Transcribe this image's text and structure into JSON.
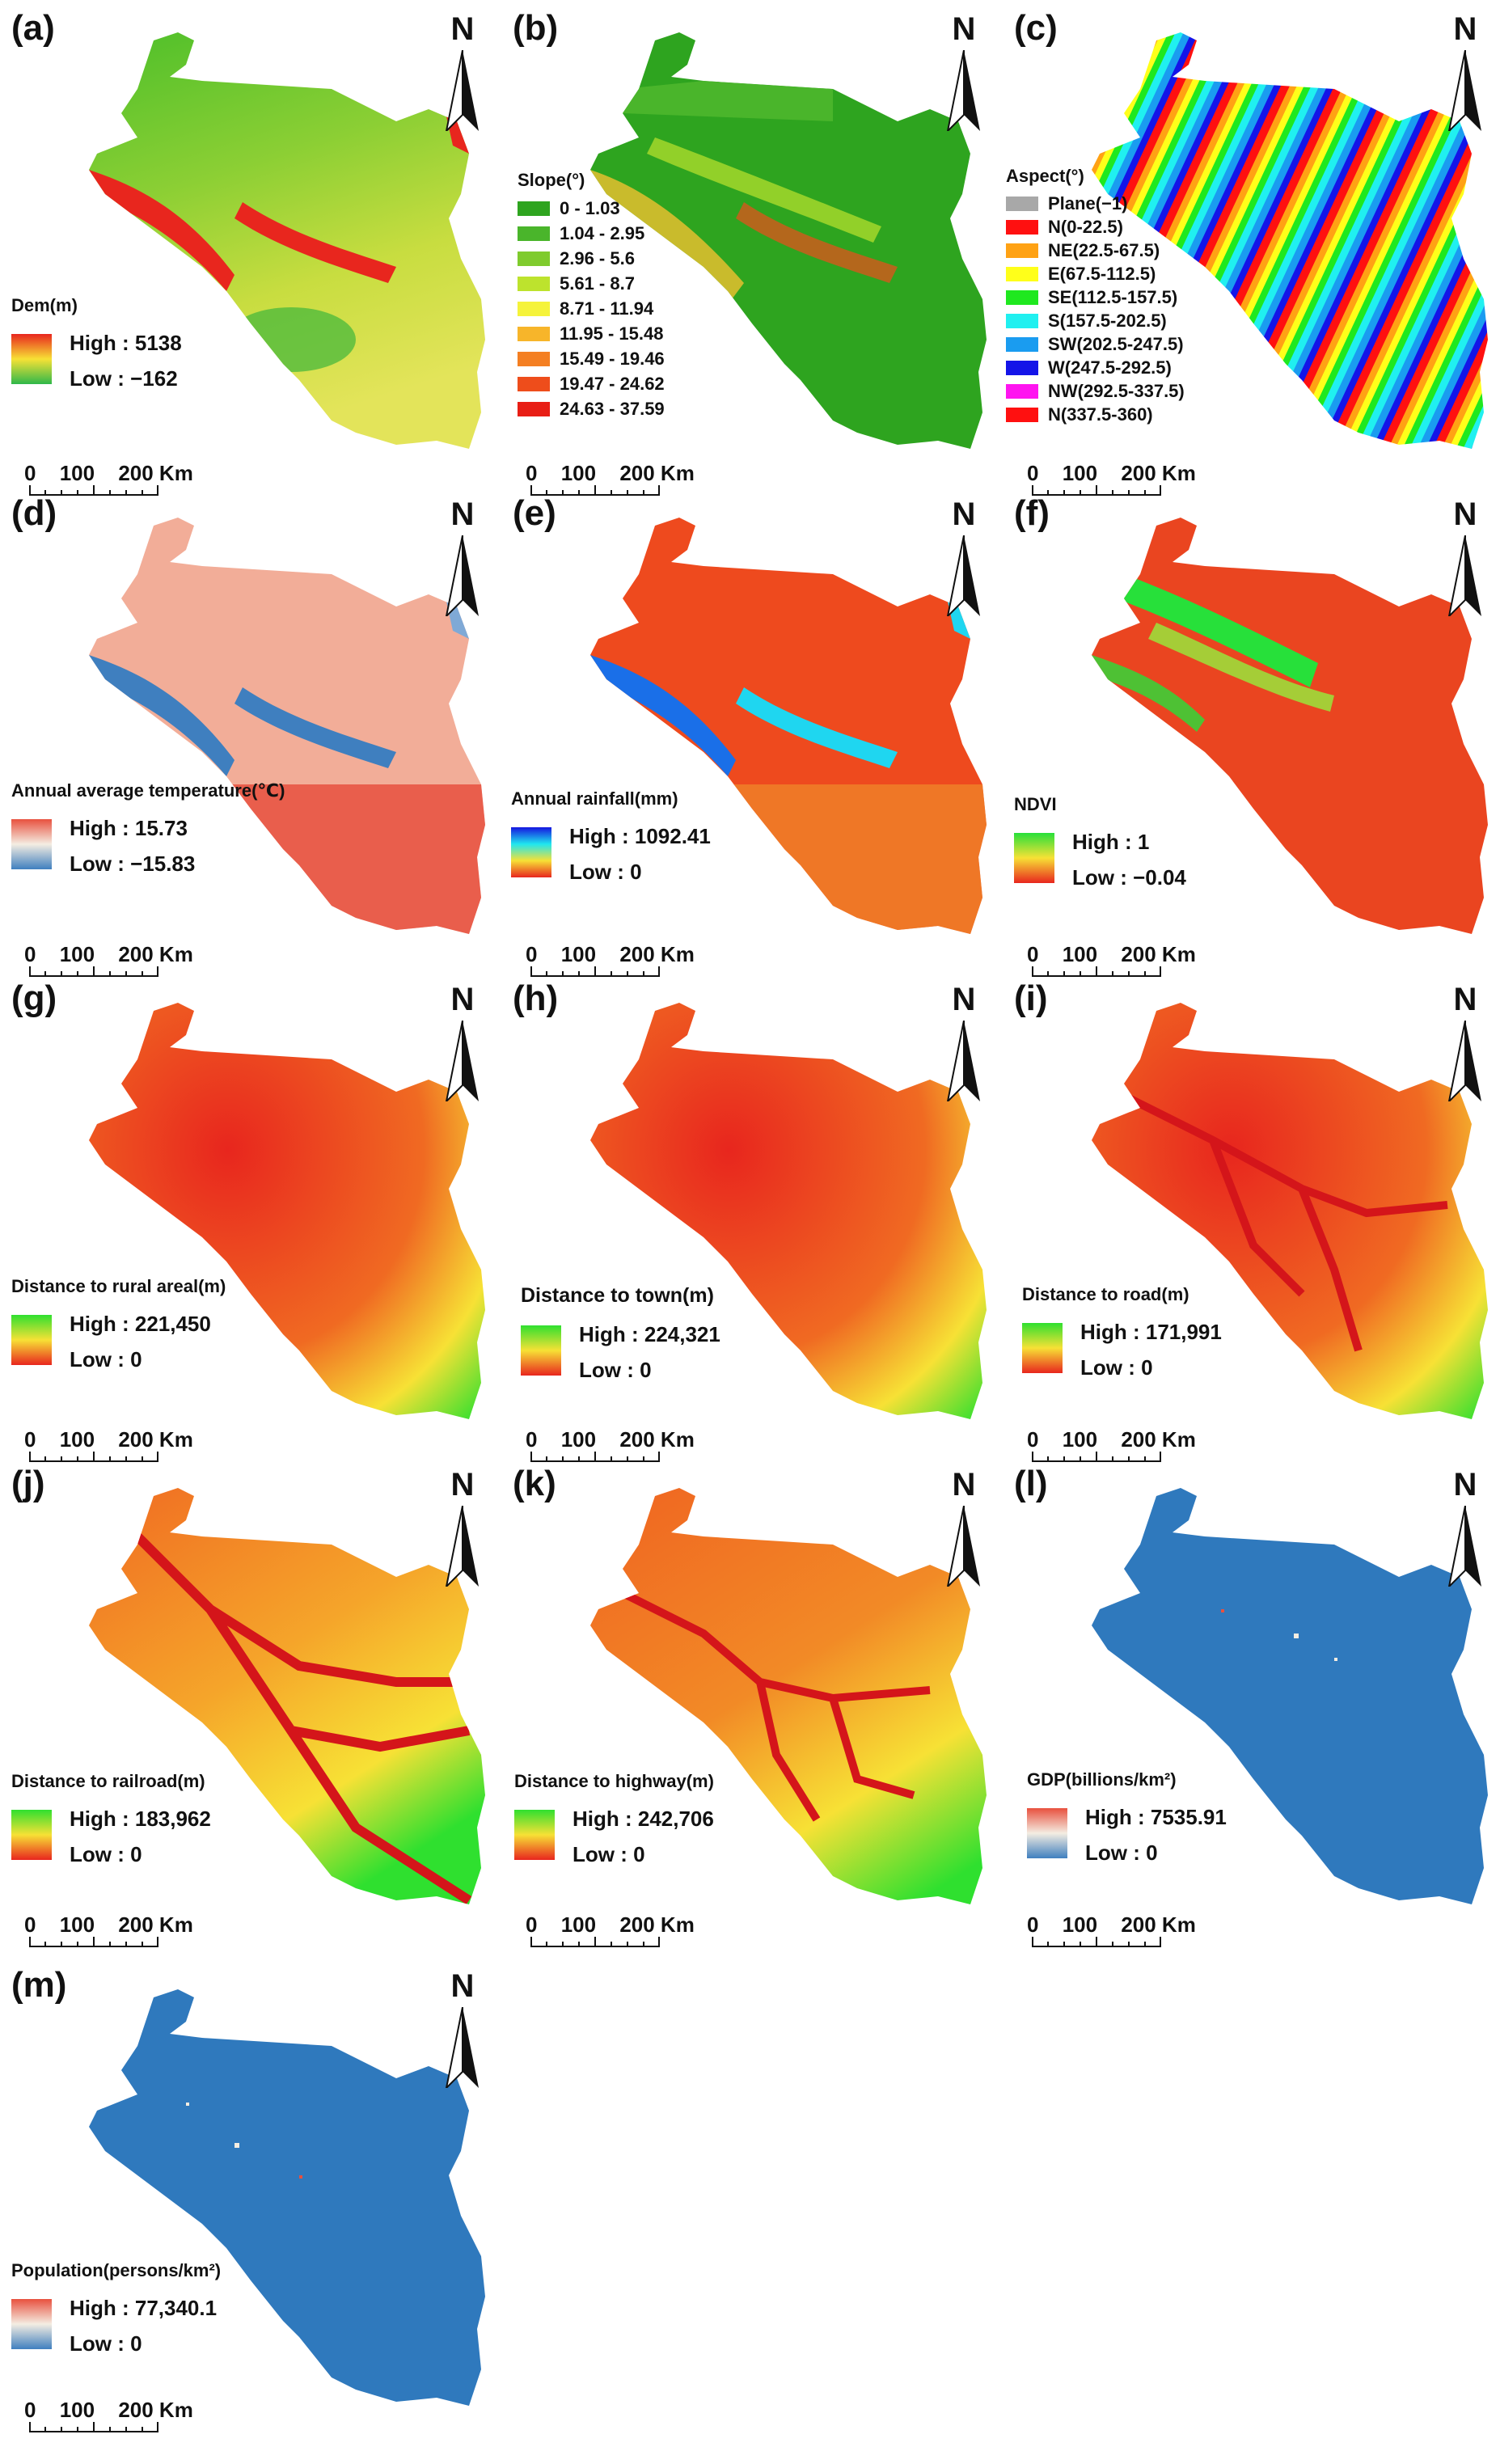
{
  "north_label": "N",
  "scale_bar": {
    "ticks": [
      "0",
      "100",
      "200 Km"
    ]
  },
  "panels": [
    {
      "id": "a",
      "label": "(a)",
      "legend_title": "Dem(m)",
      "high": "High : 5138",
      "low": "Low : −162",
      "ramp": [
        "#e8261e",
        "#f7e135",
        "#2fb84a"
      ]
    },
    {
      "id": "b",
      "label": "(b)",
      "legend_title": "Slope(°)",
      "classes": [
        {
          "label": "0 - 1.03",
          "color": "#2ea41f"
        },
        {
          "label": "1.04 - 2.95",
          "color": "#4ab52b"
        },
        {
          "label": "2.96 - 5.6",
          "color": "#7fcb2d"
        },
        {
          "label": "5.61 - 8.7",
          "color": "#bde32d"
        },
        {
          "label": "8.71 - 11.94",
          "color": "#f5f33b"
        },
        {
          "label": "11.95 - 15.48",
          "color": "#f7b52a"
        },
        {
          "label": "15.49 - 19.46",
          "color": "#f47f22"
        },
        {
          "label": "19.47 - 24.62",
          "color": "#ee4d1b"
        },
        {
          "label": "24.63 - 37.59",
          "color": "#e81e15"
        }
      ]
    },
    {
      "id": "c",
      "label": "(c)",
      "legend_title": "Aspect(°)",
      "classes": [
        {
          "label": "Plane(−1)",
          "color": "#a8a8a8"
        },
        {
          "label": "N(0-22.5)",
          "color": "#ff1010"
        },
        {
          "label": "NE(22.5-67.5)",
          "color": "#ffa214"
        },
        {
          "label": "E(67.5-112.5)",
          "color": "#ffff1a"
        },
        {
          "label": "SE(112.5-157.5)",
          "color": "#1fe81f"
        },
        {
          "label": "S(157.5-202.5)",
          "color": "#20f0f0"
        },
        {
          "label": "SW(202.5-247.5)",
          "color": "#1a9cf0"
        },
        {
          "label": "W(247.5-292.5)",
          "color": "#1414e8"
        },
        {
          "label": "NW(292.5-337.5)",
          "color": "#ff14f0"
        },
        {
          "label": "N(337.5-360)",
          "color": "#ff1010"
        }
      ]
    },
    {
      "id": "d",
      "label": "(d)",
      "legend_title": "Annual average temperature(℃)",
      "high": "High : 15.73",
      "low": "Low : −15.83",
      "ramp": [
        "#e8503e",
        "#f4ede2",
        "#3f7fbf"
      ]
    },
    {
      "id": "e",
      "label": "(e)",
      "legend_title": "Annual rainfall(mm)",
      "high": "High : 1092.41",
      "low": "Low : 0",
      "ramp": [
        "#1515e0",
        "#1fe6f0",
        "#f7e135",
        "#e8261e"
      ]
    },
    {
      "id": "f",
      "label": "(f)",
      "legend_title": "NDVI",
      "high": "High : 1",
      "low": "Low : −0.04",
      "ramp": [
        "#27e03a",
        "#f7e135",
        "#e8261e"
      ]
    },
    {
      "id": "g",
      "label": "(g)",
      "legend_title": "Distance to rural areal(m)",
      "high": "High : 221,450",
      "low": "Low : 0",
      "ramp": [
        "#2fe02f",
        "#f7e135",
        "#e8261e"
      ]
    },
    {
      "id": "h",
      "label": "(h)",
      "legend_title": "Distance to town(m)",
      "high": "High : 224,321",
      "low": "Low : 0",
      "ramp": [
        "#2fe02f",
        "#f7e135",
        "#e8261e"
      ]
    },
    {
      "id": "i",
      "label": "(i)",
      "legend_title": "Distance to road(m)",
      "high": "High : 171,991",
      "low": "Low : 0",
      "ramp": [
        "#2fe02f",
        "#f7e135",
        "#e8261e"
      ]
    },
    {
      "id": "j",
      "label": "(j)",
      "legend_title": "Distance to railroad(m)",
      "high": "High : 183,962",
      "low": "Low : 0",
      "ramp": [
        "#2fe02f",
        "#f7e135",
        "#e8261e"
      ]
    },
    {
      "id": "k",
      "label": "(k)",
      "legend_title": "Distance to highway(m)",
      "high": "High : 242,706",
      "low": "Low : 0",
      "ramp": [
        "#2fe02f",
        "#f7e135",
        "#e8261e"
      ]
    },
    {
      "id": "l",
      "label": "(l)",
      "legend_title": "GDP(billions/km²)",
      "high": "High : 7535.91",
      "low": "Low : 0",
      "ramp": [
        "#e8503e",
        "#f4ede2",
        "#3f7fbf"
      ]
    },
    {
      "id": "m",
      "label": "(m)",
      "legend_title": "Population(persons/km²)",
      "high": "High : 77,340.1",
      "low": "Low : 0",
      "ramp": [
        "#e8503e",
        "#f4ede2",
        "#3f7fbf"
      ]
    }
  ]
}
